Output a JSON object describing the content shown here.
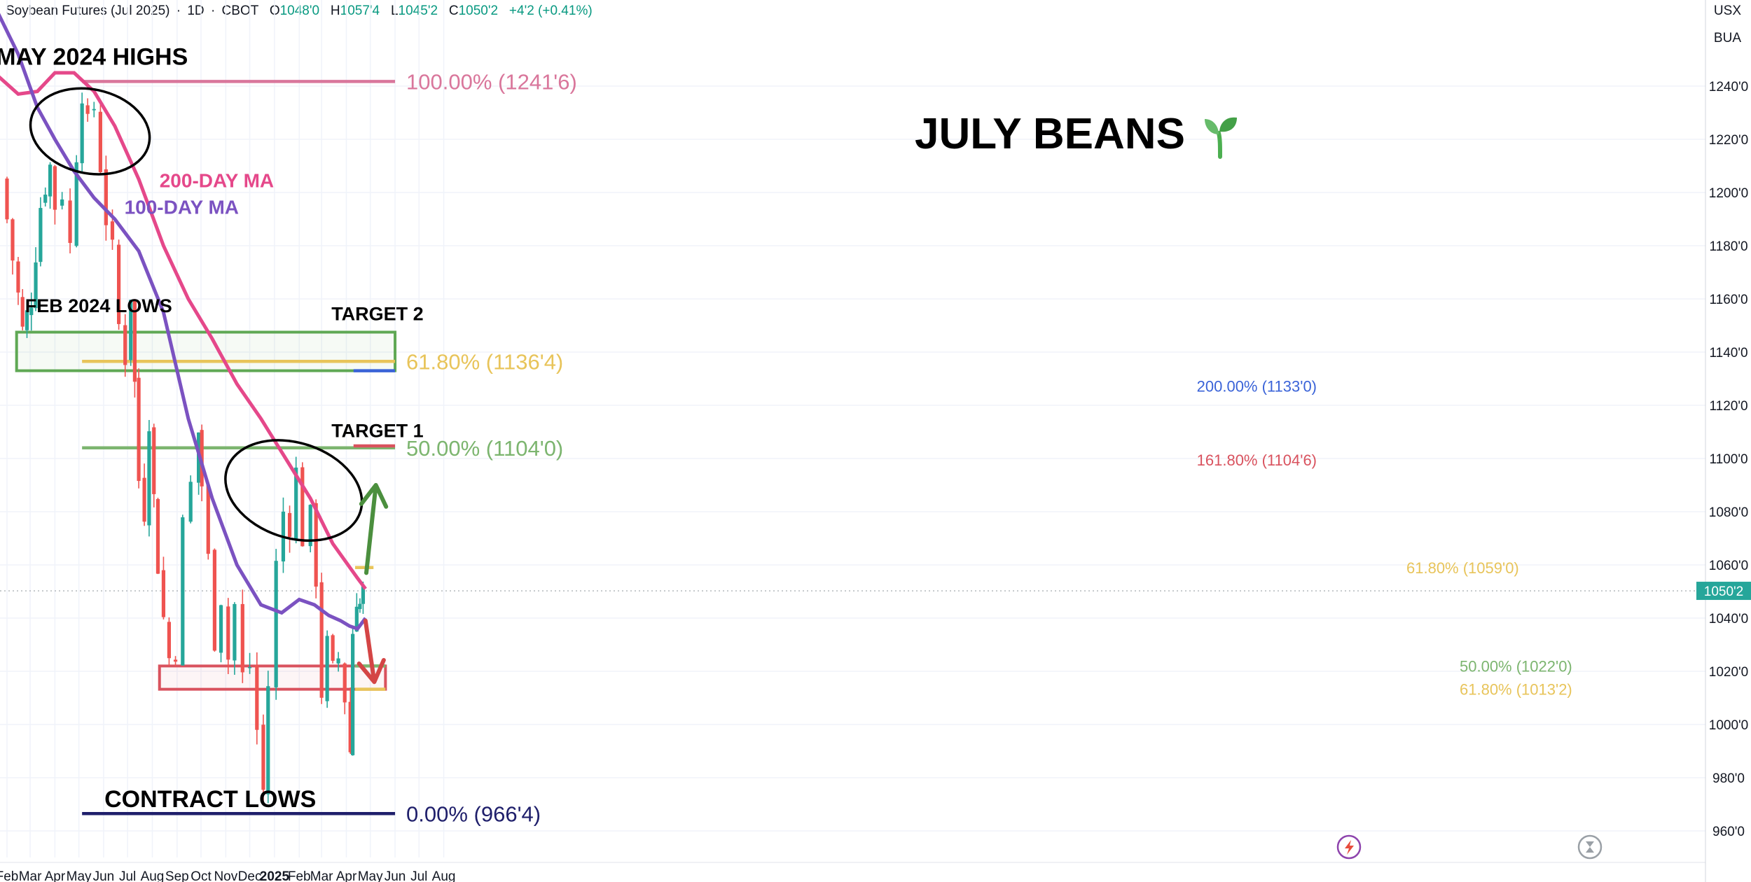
{
  "header": {
    "symbol": "Soybean Futures (Jul 2025)",
    "interval": "1D",
    "exchange": "CBOT",
    "open_label": "O",
    "open": "1048'0",
    "high_label": "H",
    "high": "1057'4",
    "low_label": "L",
    "low": "1045'2",
    "close_label": "C",
    "close": "1050'2",
    "change": "+4'2 (+0.41%)"
  },
  "axis_units": {
    "currency": "USX",
    "unit": "BUA"
  },
  "colors": {
    "up": "#26a69a",
    "down": "#ef5350",
    "ma200": "#e5488a",
    "ma100": "#7b52c1",
    "fib_pink": "#d9769b",
    "fib_yellow": "#e8c45a",
    "fib_green": "#7cb56f",
    "green_box": "#5fa854",
    "red_box": "#d9525e",
    "navy": "#1f1f6b",
    "blue": "#3a63d8"
  },
  "chart_data": {
    "type": "candlestick",
    "title": "JULY BEANS",
    "title_icon": "seedling-icon",
    "y_ticks": [
      "1240'0",
      "1220'0",
      "1200'0",
      "1180'0",
      "1160'0",
      "1140'0",
      "1120'0",
      "1100'0",
      "1080'0",
      "1060'0",
      "1040'0",
      "1020'0",
      "1000'0",
      "980'0",
      "960'0"
    ],
    "y_tick_values": [
      1240,
      1220,
      1200,
      1180,
      1160,
      1140,
      1120,
      1100,
      1080,
      1060,
      1040,
      1020,
      1000,
      980,
      960
    ],
    "ylim": [
      950,
      1265
    ],
    "x_ticks": [
      "Feb",
      "Mar",
      "Apr",
      "May",
      "Jun",
      "Jul",
      "Aug",
      "Sep",
      "Oct",
      "Nov",
      "Dec",
      "2025",
      "Feb",
      "Mar",
      "Apr",
      "May",
      "Jun",
      "Jul",
      "Aug"
    ],
    "x_tick_dates": [
      "2024-02-01",
      "2024-03-01",
      "2024-04-01",
      "2024-05-01",
      "2024-06-01",
      "2024-07-01",
      "2024-08-01",
      "2024-09-01",
      "2024-10-01",
      "2024-11-01",
      "2024-12-01",
      "2025-01-01",
      "2025-02-01",
      "2025-03-01",
      "2025-04-01",
      "2025-05-01",
      "2025-06-01",
      "2025-07-01",
      "2025-08-01"
    ],
    "last_price": {
      "label": "1050'2",
      "value": 1050.25
    },
    "closes": [
      {
        "date": "2024-02-01",
        "value": 1205
      },
      {
        "date": "2024-02-15",
        "value": 1175
      },
      {
        "date": "2024-02-26",
        "value": 1148
      },
      {
        "date": "2024-03-08",
        "value": 1160
      },
      {
        "date": "2024-03-20",
        "value": 1195
      },
      {
        "date": "2024-04-01",
        "value": 1210
      },
      {
        "date": "2024-04-10",
        "value": 1195
      },
      {
        "date": "2024-04-20",
        "value": 1200
      },
      {
        "date": "2024-04-28",
        "value": 1180
      },
      {
        "date": "2024-05-05",
        "value": 1215
      },
      {
        "date": "2024-05-12",
        "value": 1238
      },
      {
        "date": "2024-05-20",
        "value": 1225
      },
      {
        "date": "2024-05-28",
        "value": 1232
      },
      {
        "date": "2024-06-04",
        "value": 1210
      },
      {
        "date": "2024-06-12",
        "value": 1190
      },
      {
        "date": "2024-06-20",
        "value": 1178
      },
      {
        "date": "2024-06-28",
        "value": 1150
      },
      {
        "date": "2024-07-05",
        "value": 1138
      },
      {
        "date": "2024-07-10",
        "value": 1162
      },
      {
        "date": "2024-07-15",
        "value": 1128
      },
      {
        "date": "2024-07-22",
        "value": 1092
      },
      {
        "date": "2024-07-28",
        "value": 1080
      },
      {
        "date": "2024-08-03",
        "value": 1115
      },
      {
        "date": "2024-08-08",
        "value": 1085
      },
      {
        "date": "2024-08-15",
        "value": 1060
      },
      {
        "date": "2024-08-22",
        "value": 1040
      },
      {
        "date": "2024-08-30",
        "value": 1025
      },
      {
        "date": "2024-09-08",
        "value": 1028
      },
      {
        "date": "2024-09-18",
        "value": 1075
      },
      {
        "date": "2024-09-28",
        "value": 1090
      },
      {
        "date": "2024-10-02",
        "value": 1110
      },
      {
        "date": "2024-10-10",
        "value": 1090
      },
      {
        "date": "2024-10-18",
        "value": 1062
      },
      {
        "date": "2024-10-26",
        "value": 1032
      },
      {
        "date": "2024-11-04",
        "value": 1048
      },
      {
        "date": "2024-11-12",
        "value": 1025
      },
      {
        "date": "2024-11-22",
        "value": 1045
      },
      {
        "date": "2024-12-01",
        "value": 1018
      },
      {
        "date": "2024-12-10",
        "value": 1022
      },
      {
        "date": "2024-12-18",
        "value": 998
      },
      {
        "date": "2024-12-24",
        "value": 975
      },
      {
        "date": "2025-01-03",
        "value": 1015
      },
      {
        "date": "2025-01-12",
        "value": 1060
      },
      {
        "date": "2025-01-20",
        "value": 1080
      },
      {
        "date": "2025-01-28",
        "value": 1075
      },
      {
        "date": "2025-02-05",
        "value": 1095
      },
      {
        "date": "2025-02-15",
        "value": 1070
      },
      {
        "date": "2025-02-22",
        "value": 1078
      },
      {
        "date": "2025-03-01",
        "value": 1055
      },
      {
        "date": "2025-03-08",
        "value": 1012
      },
      {
        "date": "2025-03-15",
        "value": 1030
      },
      {
        "date": "2025-03-22",
        "value": 1020
      },
      {
        "date": "2025-03-30",
        "value": 1025
      },
      {
        "date": "2025-04-06",
        "value": 1010
      },
      {
        "date": "2025-04-09",
        "value": 990
      },
      {
        "date": "2025-04-14",
        "value": 1035
      },
      {
        "date": "2025-04-18",
        "value": 1048
      },
      {
        "date": "2025-04-22",
        "value": 1045
      },
      {
        "date": "2025-04-25",
        "value": 1050
      }
    ],
    "ma200": [
      {
        "date": "2024-01-20",
        "value": 1244
      },
      {
        "date": "2024-02-15",
        "value": 1237
      },
      {
        "date": "2024-03-10",
        "value": 1238
      },
      {
        "date": "2024-04-01",
        "value": 1245
      },
      {
        "date": "2024-04-25",
        "value": 1245
      },
      {
        "date": "2024-05-20",
        "value": 1238
      },
      {
        "date": "2024-06-15",
        "value": 1225
      },
      {
        "date": "2024-07-15",
        "value": 1205
      },
      {
        "date": "2024-08-15",
        "value": 1180
      },
      {
        "date": "2024-09-15",
        "value": 1160
      },
      {
        "date": "2024-10-15",
        "value": 1145
      },
      {
        "date": "2024-11-15",
        "value": 1128
      },
      {
        "date": "2024-12-15",
        "value": 1115
      },
      {
        "date": "2025-01-15",
        "value": 1100
      },
      {
        "date": "2025-02-15",
        "value": 1085
      },
      {
        "date": "2025-03-15",
        "value": 1068
      },
      {
        "date": "2025-04-15",
        "value": 1055
      },
      {
        "date": "2025-04-25",
        "value": 1051
      }
    ],
    "ma100": [
      {
        "date": "2024-01-20",
        "value": 1268
      },
      {
        "date": "2024-02-15",
        "value": 1252
      },
      {
        "date": "2024-03-10",
        "value": 1232
      },
      {
        "date": "2024-04-01",
        "value": 1220
      },
      {
        "date": "2024-04-25",
        "value": 1208
      },
      {
        "date": "2024-05-20",
        "value": 1198
      },
      {
        "date": "2024-06-15",
        "value": 1190
      },
      {
        "date": "2024-07-15",
        "value": 1178
      },
      {
        "date": "2024-08-15",
        "value": 1155
      },
      {
        "date": "2024-09-15",
        "value": 1115
      },
      {
        "date": "2024-10-15",
        "value": 1085
      },
      {
        "date": "2024-11-15",
        "value": 1060
      },
      {
        "date": "2024-12-15",
        "value": 1045
      },
      {
        "date": "2025-01-10",
        "value": 1042
      },
      {
        "date": "2025-02-01",
        "value": 1047
      },
      {
        "date": "2025-02-20",
        "value": 1045
      },
      {
        "date": "2025-03-10",
        "value": 1041
      },
      {
        "date": "2025-03-25",
        "value": 1039
      },
      {
        "date": "2025-04-05",
        "value": 1037
      },
      {
        "date": "2025-04-15",
        "value": 1036
      },
      {
        "date": "2025-04-25",
        "value": 1040
      }
    ],
    "series": [
      {
        "name": "200-DAY MA",
        "key": "ma200"
      },
      {
        "name": "100-DAY MA",
        "key": "ma100"
      }
    ],
    "levels": [
      {
        "id": "fib-100",
        "value": 1241.75,
        "from": "2024-05-05",
        "to": "2025-06-01",
        "color": "#d9769b",
        "label": "100.00% (1241'6)"
      },
      {
        "id": "fib-618-major",
        "value": 1136.5,
        "from": "2024-05-05",
        "to": "2025-06-01",
        "color": "#e8c45a",
        "label": "61.80% (1136'4)"
      },
      {
        "id": "fib-50-major",
        "value": 1104,
        "from": "2024-05-05",
        "to": "2025-06-01",
        "color": "#7cb56f",
        "label": "50.00% (1104'0)"
      },
      {
        "id": "fib-0",
        "value": 966.5,
        "from": "2024-05-05",
        "to": "2025-06-01",
        "color": "#1f1f6b",
        "label": "0.00% (966'4)"
      },
      {
        "id": "ext-200",
        "value": 1133,
        "from": "2025-04-10",
        "to": "2025-06-01",
        "color": "#3a63d8",
        "label": "200.00% (1133'0)"
      },
      {
        "id": "ext-1618",
        "value": 1104.75,
        "from": "2025-04-10",
        "to": "2025-06-01",
        "color": "#d9525e",
        "label": "161.80% (1104'6)"
      },
      {
        "id": "fib-618-a",
        "value": 1059,
        "from": "2025-04-12",
        "to": "2025-05-05",
        "color": "#e8c45a",
        "label": "61.80% (1059'0)"
      },
      {
        "id": "fib-50-b",
        "value": 1022,
        "from": "2025-04-12",
        "to": "2025-05-20",
        "color": "#7cb56f",
        "label": "50.00% (1022'0)"
      },
      {
        "id": "fib-618-b",
        "value": 1013.25,
        "from": "2025-04-12",
        "to": "2025-05-20",
        "color": "#e8c45a",
        "label": "61.80% (1013'2)"
      }
    ],
    "annotations": [
      {
        "text": "MAY 2024 HIGHS",
        "date": "2024-05-20",
        "value": 1248
      },
      {
        "text": "FEB 2024 LOWS",
        "date": "2024-02-28",
        "value": 1155
      },
      {
        "text": "TARGET 2",
        "date": "2025-05-10",
        "value": 1152
      },
      {
        "text": "TARGET 1",
        "date": "2025-05-10",
        "value": 1108
      },
      {
        "text": "200-DAY MA",
        "date": "2024-08-10",
        "value": 1202
      },
      {
        "text": "100-DAY MA",
        "date": "2024-06-27",
        "value": 1192
      },
      {
        "text": "CONTRACT LOWS",
        "date": "2024-06-02",
        "value": 969
      }
    ],
    "zones": [
      {
        "id": "green-zone",
        "from": "2024-02-13",
        "to": "2025-06-01",
        "high": 1147.5,
        "low": 1133,
        "color": "#5fa854"
      },
      {
        "id": "red-zone",
        "from": "2024-08-10",
        "to": "2025-05-20",
        "high": 1022,
        "low": 1013.25,
        "color": "#d9525e"
      }
    ],
    "ellipses": [
      {
        "id": "may-highs-ellipse",
        "date": "2024-05-15",
        "value": 1223
      },
      {
        "id": "jan-highs-ellipse",
        "date": "2025-01-25",
        "value": 1088
      }
    ],
    "arrows": [
      {
        "id": "up-arrow",
        "from_date": "2025-04-26",
        "from_value": 1057,
        "to_date": "2025-05-08",
        "to_value": 1090,
        "color": "#4b8f3e"
      },
      {
        "id": "down-arrow",
        "from_date": "2025-04-25",
        "from_value": 1039,
        "to_date": "2025-05-06",
        "to_value": 1016,
        "color": "#d44545"
      }
    ]
  }
}
